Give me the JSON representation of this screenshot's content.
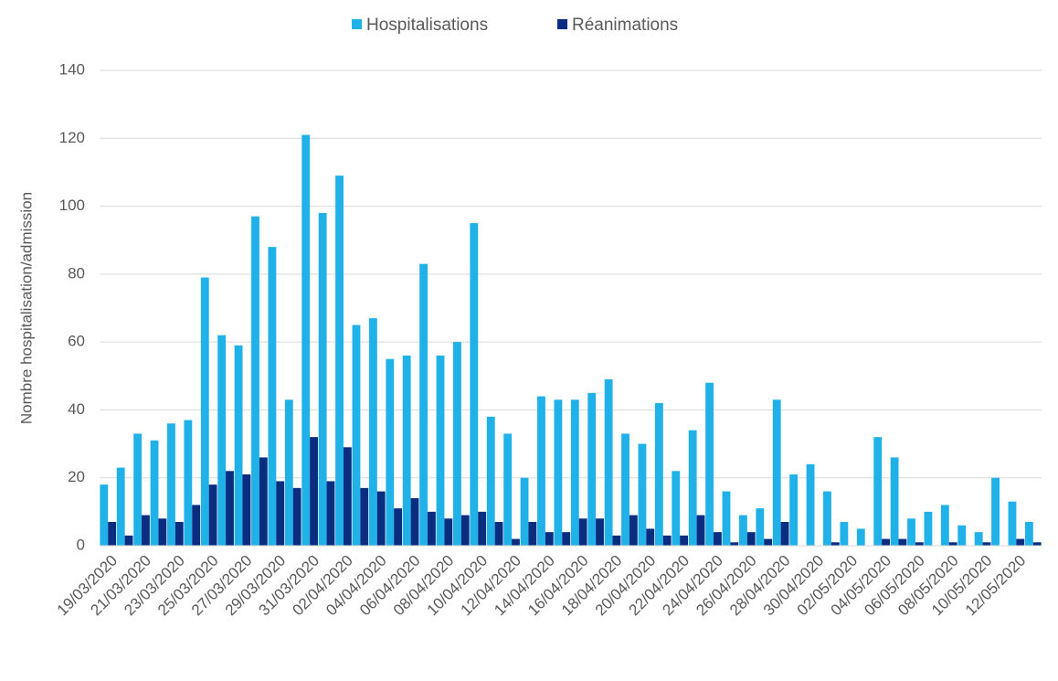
{
  "chart_data": {
    "type": "bar",
    "y_label": "Nombre hospitalisation/admission",
    "categories": [
      "19/03/2020",
      null,
      "21/03/2020",
      null,
      "23/03/2020",
      null,
      "25/03/2020",
      null,
      "27/03/2020",
      null,
      "29/03/2020",
      null,
      "31/03/2020",
      null,
      "02/04/2020",
      null,
      "04/04/2020",
      null,
      "06/04/2020",
      null,
      "08/04/2020",
      null,
      "10/04/2020",
      null,
      "12/04/2020",
      null,
      "14/04/2020",
      null,
      "16/04/2020",
      null,
      "18/04/2020",
      null,
      "20/04/2020",
      null,
      "22/04/2020",
      null,
      "24/04/2020",
      null,
      "26/04/2020",
      null,
      "28/04/2020",
      null,
      "30/04/2020",
      null,
      "02/05/2020",
      null,
      "04/05/2020",
      null,
      "06/05/2020",
      null,
      "08/05/2020",
      null,
      "10/05/2020",
      null,
      "12/05/2020",
      null
    ],
    "series": [
      {
        "name": "Hospitalisations",
        "color": "#1fb1e8",
        "values": [
          18,
          23,
          33,
          31,
          36,
          37,
          79,
          62,
          59,
          97,
          88,
          43,
          121,
          98,
          109,
          65,
          67,
          55,
          56,
          83,
          56,
          60,
          95,
          38,
          33,
          20,
          44,
          43,
          43,
          45,
          49,
          33,
          30,
          42,
          22,
          34,
          48,
          16,
          9,
          11,
          43,
          21,
          24,
          16,
          7,
          5,
          32,
          26,
          8,
          10,
          12,
          6,
          4,
          20,
          13,
          7
        ]
      },
      {
        "name": "Réanimations",
        "color": "#0b2d80",
        "values": [
          7,
          3,
          9,
          8,
          7,
          12,
          18,
          22,
          21,
          26,
          19,
          17,
          32,
          19,
          29,
          17,
          16,
          11,
          14,
          10,
          8,
          9,
          10,
          7,
          2,
          7,
          4,
          4,
          8,
          8,
          3,
          9,
          5,
          3,
          3,
          9,
          4,
          1,
          4,
          2,
          7,
          0,
          0,
          1,
          0,
          0,
          2,
          2,
          1,
          0,
          1,
          0,
          1,
          0,
          2,
          1
        ]
      }
    ],
    "ylim": [
      0,
      140
    ],
    "yticks": [
      0,
      20,
      40,
      60,
      80,
      100,
      120,
      140
    ],
    "grid": true,
    "legend": "top"
  }
}
